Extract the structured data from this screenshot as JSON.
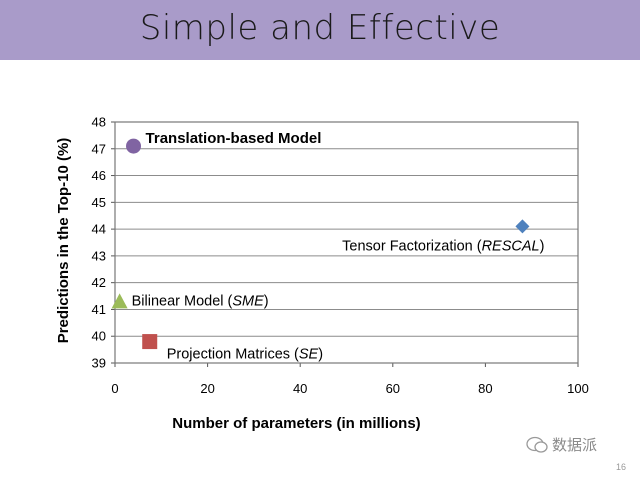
{
  "slide": {
    "title": "Simple and Effective",
    "page_number": "16",
    "watermark_text": "数据派",
    "title_bar_color": "#a99bc9"
  },
  "chart_data": {
    "type": "scatter",
    "xlabel": "Number of parameters (in millions)",
    "ylabel": "Predictions in the Top-10 (%)",
    "xlim": [
      0,
      100
    ],
    "ylim": [
      39,
      48
    ],
    "xticks": [
      0,
      20,
      40,
      60,
      80,
      100
    ],
    "yticks": [
      39,
      40,
      41,
      42,
      43,
      44,
      45,
      46,
      47,
      48
    ],
    "grid": "horizontal",
    "legend": "none",
    "points": [
      {
        "label": "Translation-based Model",
        "label_bold": true,
        "label_italic": "",
        "x": 4,
        "y": 47.1,
        "marker": "circle",
        "color": "#8064a2",
        "label_side": "right"
      },
      {
        "label": "Tensor Factorization (",
        "label_italic": "RESCAL",
        "label_end": ")",
        "x": 88,
        "y": 44.1,
        "marker": "diamond",
        "color": "#4f81bd",
        "label_side": "below-left"
      },
      {
        "label": "Bilinear Model (",
        "label_italic": "SME",
        "label_end": ")",
        "x": 1,
        "y": 41.3,
        "marker": "triangle",
        "color": "#9bbb59",
        "label_side": "right"
      },
      {
        "label": "Projection Matrices (",
        "label_italic": "SE",
        "label_end": ")",
        "x": 7.5,
        "y": 39.8,
        "marker": "square",
        "color": "#c0504d",
        "label_side": "below-right"
      }
    ]
  }
}
